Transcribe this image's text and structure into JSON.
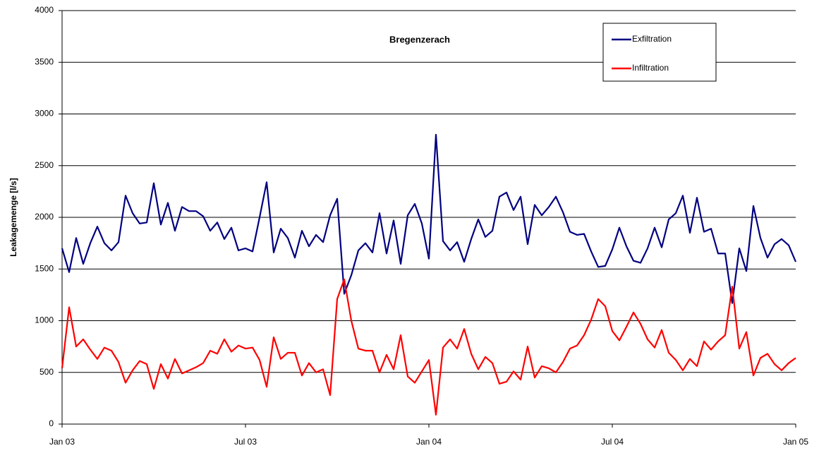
{
  "chart_data": {
    "type": "line",
    "title": "Bregenzerach",
    "y_label": "Leakagemenge [l/s]",
    "categories": [
      "Jan 03",
      null,
      null,
      null,
      null,
      null,
      null,
      null,
      null,
      null,
      null,
      null,
      null,
      null,
      null,
      null,
      null,
      null,
      null,
      null,
      null,
      null,
      null,
      null,
      null,
      null,
      "Jul 03",
      null,
      null,
      null,
      null,
      null,
      null,
      null,
      null,
      null,
      null,
      null,
      null,
      null,
      null,
      null,
      null,
      null,
      null,
      null,
      null,
      null,
      null,
      null,
      null,
      null,
      "Jan 04",
      null,
      null,
      null,
      null,
      null,
      null,
      null,
      null,
      null,
      null,
      null,
      null,
      null,
      null,
      null,
      null,
      null,
      null,
      null,
      null,
      null,
      null,
      null,
      null,
      null,
      "Jul 04",
      null,
      null,
      null,
      null,
      null,
      null,
      null,
      null,
      null,
      null,
      null,
      null,
      null,
      null,
      null,
      null,
      null,
      null,
      null,
      null,
      null,
      null,
      null,
      null,
      null,
      "Jan 05"
    ],
    "series": [
      {
        "name": "Exfiltration",
        "color": "#000080",
        "values": [
          1700,
          1470,
          1800,
          1550,
          1750,
          1910,
          1750,
          1680,
          1760,
          2210,
          2040,
          1940,
          1950,
          2330,
          1930,
          2140,
          1870,
          2100,
          2060,
          2060,
          2010,
          1870,
          1950,
          1790,
          1900,
          1680,
          1700,
          1670,
          2000,
          2340,
          1660,
          1890,
          1800,
          1610,
          1870,
          1720,
          1830,
          1760,
          2020,
          2180,
          1260,
          1440,
          1680,
          1750,
          1660,
          2040,
          1650,
          1970,
          1550,
          2020,
          2130,
          1940,
          1600,
          2800,
          1770,
          1680,
          1760,
          1570,
          1790,
          1980,
          1810,
          1870,
          2200,
          2240,
          2070,
          2200,
          1740,
          2120,
          2020,
          2100,
          2200,
          2050,
          1860,
          1830,
          1840,
          1670,
          1520,
          1530,
          1690,
          1900,
          1720,
          1580,
          1560,
          1700,
          1900,
          1710,
          1980,
          2040,
          2210,
          1850,
          2190,
          1860,
          1890,
          1650,
          1650,
          1170,
          1700,
          1480,
          2110,
          1800,
          1610,
          1740,
          1790,
          1730,
          1570
        ]
      },
      {
        "name": "Infiltration",
        "color": "#ff0000",
        "values": [
          540,
          1130,
          750,
          820,
          720,
          630,
          740,
          710,
          600,
          400,
          520,
          610,
          580,
          340,
          580,
          440,
          630,
          490,
          520,
          550,
          590,
          710,
          680,
          820,
          700,
          760,
          730,
          740,
          620,
          360,
          840,
          630,
          690,
          690,
          470,
          590,
          500,
          530,
          280,
          1210,
          1400,
          1000,
          730,
          710,
          710,
          500,
          670,
          530,
          860,
          460,
          400,
          510,
          620,
          90,
          740,
          820,
          730,
          920,
          680,
          530,
          650,
          590,
          390,
          410,
          510,
          430,
          750,
          450,
          560,
          540,
          500,
          600,
          730,
          760,
          860,
          1010,
          1210,
          1140,
          900,
          810,
          940,
          1080,
          970,
          820,
          740,
          910,
          690,
          620,
          520,
          630,
          560,
          800,
          720,
          800,
          860,
          1330,
          730,
          890,
          470,
          640,
          680,
          580,
          520,
          590,
          640
        ]
      }
    ],
    "ylim": [
      0,
      4000
    ],
    "yticks": [
      0,
      500,
      1000,
      1500,
      2000,
      2500,
      3000,
      3500,
      4000
    ],
    "grid": true,
    "legend": "upper right"
  }
}
